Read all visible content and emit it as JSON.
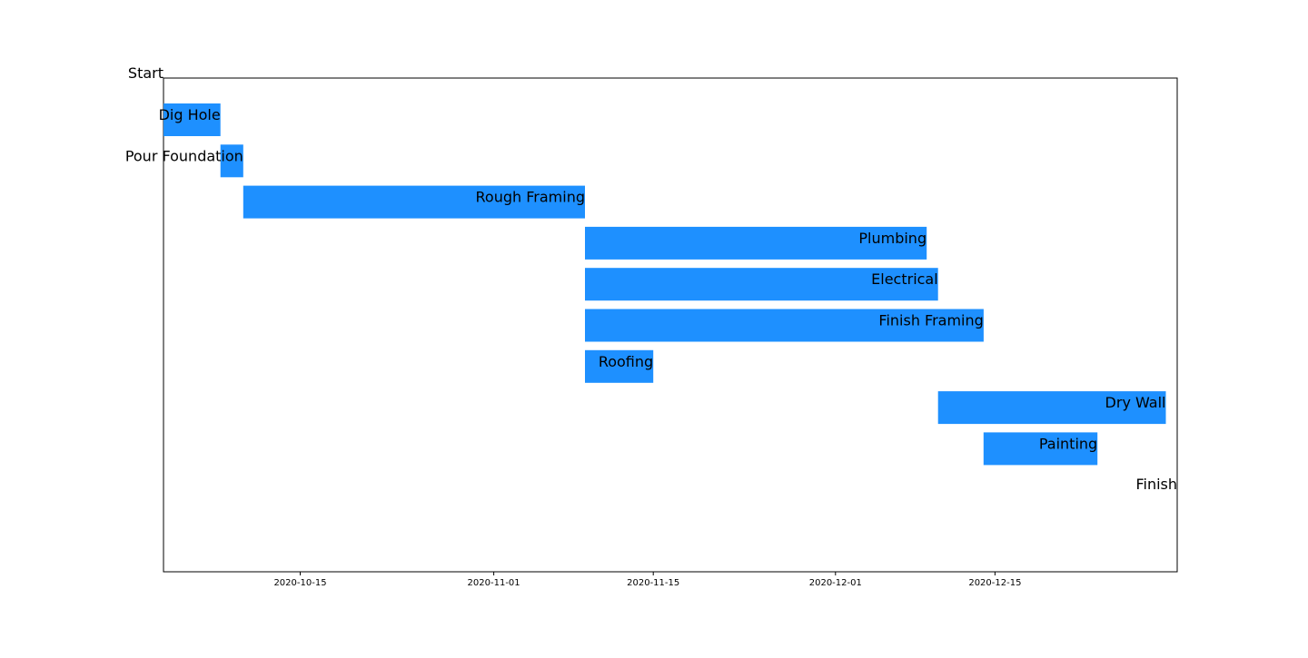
{
  "chart_data": {
    "type": "gantt",
    "title": "",
    "xlabel": "",
    "ylabel": "",
    "x_axis": "date",
    "xlim": [
      "2020-10-03",
      "2020-12-31"
    ],
    "x_ticks": [
      "2020-10-15",
      "2020-11-01",
      "2020-11-15",
      "2020-12-01",
      "2020-12-15"
    ],
    "bar_color": "#1e90ff",
    "grid": false,
    "milestones": [
      {
        "label": "Start",
        "date": "2020-10-03"
      },
      {
        "label": "Finish",
        "date": "2020-12-31"
      }
    ],
    "tasks": [
      {
        "label": "Dig Hole",
        "start": "2020-10-03",
        "end": "2020-10-08"
      },
      {
        "label": "Pour Foundation",
        "start": "2020-10-08",
        "end": "2020-10-10"
      },
      {
        "label": "Rough Framing",
        "start": "2020-10-10",
        "end": "2020-11-09"
      },
      {
        "label": "Plumbing",
        "start": "2020-11-09",
        "end": "2020-12-09"
      },
      {
        "label": "Electrical",
        "start": "2020-11-09",
        "end": "2020-12-10"
      },
      {
        "label": "Finish Framing",
        "start": "2020-11-09",
        "end": "2020-12-14"
      },
      {
        "label": "Roofing",
        "start": "2020-11-09",
        "end": "2020-11-15"
      },
      {
        "label": "Dry Wall",
        "start": "2020-12-10",
        "end": "2020-12-30"
      },
      {
        "label": "Painting",
        "start": "2020-12-14",
        "end": "2020-12-24"
      }
    ]
  }
}
